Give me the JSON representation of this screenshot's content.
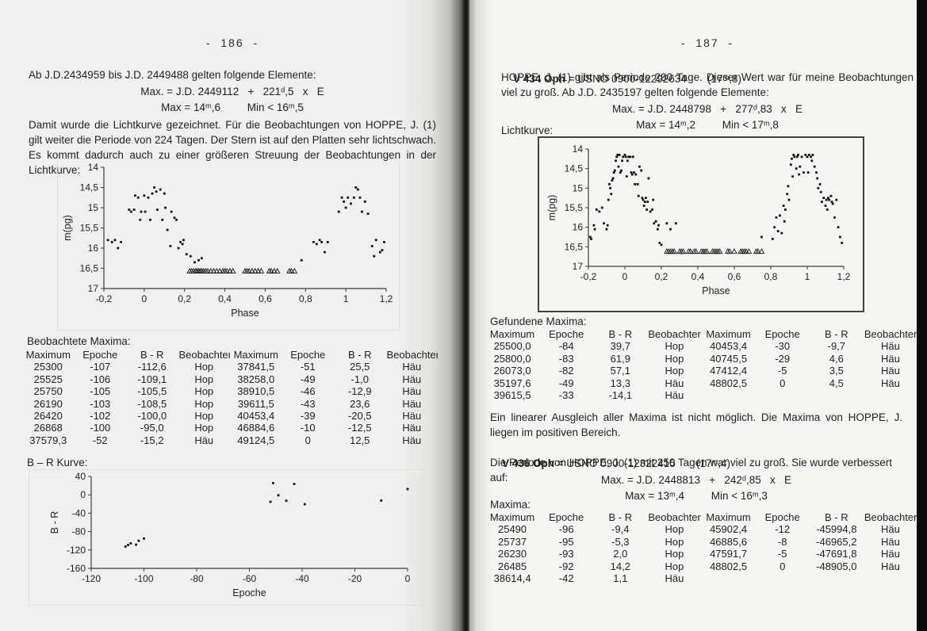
{
  "page_left": {
    "page_number": "-  186  -",
    "para1": "Ab J.D.2434959 bis J.D. 2449488 gelten folgende Elemente:",
    "formula": {
      "line1": "Max. = J.D. 2449112   +   221ᵈ,5   x   E",
      "line2": "Max = 14ᵐ,6         Min < 16ᵐ,5"
    },
    "para2": "Damit wurde die Lichtkurve gezeichnet. Für die Beobachtungen von HOPPE, J. (1) gilt weiter die Periode von 224 Tagen. Der Stern ist auf den Platten sehr lichtschwach. Es kommt dadurch auch zu einer größeren Streuung der Beobachtungen in der Lichtkurve:",
    "maxima_label": "Beobachtete Maxima:",
    "maxima_table": {
      "headers": [
        "Maximum",
        "Epoche",
        "B - R",
        "Beobachter",
        "Maximum",
        "Epoche",
        "B - R",
        "Beobachter"
      ],
      "rows": [
        [
          "25300",
          "-107",
          "-112,6",
          "Hop",
          "37841,5",
          "-51",
          "25,5",
          "Häu"
        ],
        [
          "25525",
          "-106",
          "-109,1",
          "Hop",
          "38258,0",
          "-49",
          "-1,0",
          "Häu"
        ],
        [
          "25750",
          "-105",
          "-105,5",
          "Hop",
          "38910,5",
          "-46",
          "-12,9",
          "Häu"
        ],
        [
          "26190",
          "-103",
          "-108,5",
          "Hop",
          "39611,5",
          "-43",
          "23,6",
          "Häu"
        ],
        [
          "26420",
          "-102",
          "-100,0",
          "Hop",
          "40453,4",
          "-39",
          "-20,5",
          "Häu"
        ],
        [
          "26868",
          "-100",
          "-95,0",
          "Hop",
          "46884,6",
          "-10",
          "-12,5",
          "Häu"
        ],
        [
          "37579,3",
          "-52",
          "-15,2",
          "Häu",
          "49124,5",
          "0",
          "12,5",
          "Häu"
        ]
      ]
    },
    "br_label": "B – R Kurve:"
  },
  "page_right": {
    "page_number": "-  187  -",
    "star1": {
      "name": "V 434 Oph",
      "rest": " = USNO 0900-12292634       (17ᵐ,8)"
    },
    "para1": "HOPPE, J. (1) gibt als Periode 290 Tage. Dieser Wert war für meine Beobachtungen viel zu groß. Ab J.D. 2435197 gelten folgende Elemente:",
    "formula1": {
      "line1": "Max. = J.D. 2448798   +   277ᵈ,83   x   E",
      "line2": "Max = 14ᵐ,2         Min < 17ᵐ,8"
    },
    "lichtkurve_label": "Lichtkurve:",
    "gefundene_label": "Gefundene Maxima:",
    "gefundene_table": {
      "headers": [
        "Maximum",
        "Epoche",
        "B - R",
        "Beobachter",
        "Maximum",
        "Epoche",
        "B - R",
        "Beobachter"
      ],
      "rows": [
        [
          "25500,0",
          "-84",
          "39,7",
          "Hop",
          "40453,4",
          "-30",
          "-9,7",
          "Häu"
        ],
        [
          "25800,0",
          "-83",
          "61,9",
          "Hop",
          "40745,5",
          "-29",
          "4,6",
          "Häu"
        ],
        [
          "26073,0",
          "-82",
          "57,1",
          "Hop",
          "47412,4",
          "-5",
          "3,5",
          "Häu"
        ],
        [
          "35197,6",
          "-49",
          "13,3",
          "Häu",
          "48802,5",
          "0",
          "4,5",
          "Häu"
        ],
        [
          "39615,5",
          "-33",
          "-14,1",
          "Häu",
          "",
          "",
          "",
          ""
        ]
      ]
    },
    "para2": "Ein linearer Ausgleich aller Maxima ist nicht möglich. Die Maxima von HOPPE, J. liegen im positiven Bereich.",
    "star2": {
      "name": "V 436 Oph",
      "rest": " = USNO 0900-12322415       (17ᵐ,4)"
    },
    "para3": "Die Periode von HOPPE, J. (1) mit 250 Tagen war viel zu groß. Sie wurde verbessert auf:",
    "formula2": {
      "line1": "Max. = J.D. 2448813   +   242ᵈ,85   x   E",
      "line2": "Max = 13ᵐ,4         Min < 16ᵐ,3"
    },
    "maxima_label": "Maxima:",
    "maxima_table": {
      "headers": [
        "Maximum",
        "Epoche",
        "B - R",
        "Beobachter",
        "Maximum",
        "Epoche",
        "B - R",
        "Beobachter"
      ],
      "rows": [
        [
          "25490",
          "-96",
          "-9,4",
          "Hop",
          "45902,4",
          "-12",
          "-45994,8",
          "Häu"
        ],
        [
          "25737",
          "-95",
          "-5,3",
          "Hop",
          "46885,6",
          "-8",
          "-46965,2",
          "Häu"
        ],
        [
          "26230",
          "-93",
          "2,0",
          "Hop",
          "47591,7",
          "-5",
          "-47691,8",
          "Häu"
        ],
        [
          "26485",
          "-92",
          "14,2",
          "Hop",
          "48802,5",
          "0",
          "-48905,0",
          "Häu"
        ],
        [
          "38614,4",
          "-42",
          "1,1",
          "Häu",
          "",
          "",
          "",
          ""
        ]
      ]
    }
  },
  "chart_data": [
    {
      "id": "lightcurve_186",
      "type": "scatter",
      "title": "",
      "xlabel": "Phase",
      "ylabel": "m(pg)",
      "xlim": [
        -0.2,
        1.2
      ],
      "ylim": [
        17,
        14
      ],
      "y_axis_inverted": true,
      "grid": false,
      "xticks": {
        "values": [
          -0.2,
          0,
          0.2,
          0.4,
          0.6,
          0.8,
          1,
          1.2
        ],
        "labels": [
          "-0,2",
          "0",
          "0,2",
          "0,4",
          "0,6",
          "0,8",
          "1",
          "1,2"
        ]
      },
      "yticks": {
        "values": [
          14,
          14.5,
          15,
          15.5,
          16,
          16.5,
          17
        ],
        "labels": [
          "14",
          "14,5",
          "15",
          "15,5",
          "16",
          "16,5",
          "17"
        ]
      },
      "points": [
        [
          -0.18,
          15.8
        ],
        [
          -0.16,
          15.85
        ],
        [
          -0.145,
          15.8
        ],
        [
          -0.13,
          16.0
        ],
        [
          -0.115,
          15.85
        ],
        [
          -0.075,
          15.05
        ],
        [
          -0.065,
          15.1
        ],
        [
          -0.05,
          15.05
        ],
        [
          -0.045,
          14.7
        ],
        [
          -0.03,
          14.75
        ],
        [
          -0.02,
          15.3
        ],
        [
          -0.015,
          15.1
        ],
        [
          0.0,
          14.7
        ],
        [
          0.005,
          15.1
        ],
        [
          0.02,
          14.75
        ],
        [
          0.03,
          15.3
        ],
        [
          0.04,
          14.65
        ],
        [
          0.05,
          14.5
        ],
        [
          0.06,
          14.6
        ],
        [
          0.065,
          15.05
        ],
        [
          0.08,
          14.55
        ],
        [
          0.09,
          15.3
        ],
        [
          0.1,
          14.65
        ],
        [
          0.105,
          15.0
        ],
        [
          0.115,
          15.55
        ],
        [
          0.13,
          15.95
        ],
        [
          0.135,
          15.1
        ],
        [
          0.15,
          15.25
        ],
        [
          0.16,
          15.3
        ],
        [
          0.17,
          16.0
        ],
        [
          0.18,
          15.85
        ],
        [
          0.19,
          15.9
        ],
        [
          0.195,
          15.8
        ],
        [
          0.21,
          16.15
        ],
        [
          0.23,
          16.2
        ],
        [
          0.25,
          16.35
        ],
        [
          0.27,
          16.3
        ],
        [
          0.285,
          16.25
        ],
        [
          0.78,
          16.3
        ],
        [
          0.84,
          15.85
        ],
        [
          0.855,
          15.9
        ],
        [
          0.87,
          15.8
        ],
        [
          0.88,
          15.85
        ],
        [
          0.895,
          16.1
        ],
        [
          0.91,
          15.85
        ],
        [
          0.965,
          15.1
        ],
        [
          0.98,
          14.75
        ],
        [
          0.99,
          14.85
        ],
        [
          1.0,
          15.0
        ],
        [
          1.01,
          14.75
        ],
        [
          1.025,
          14.9
        ],
        [
          1.04,
          14.75
        ],
        [
          1.05,
          14.5
        ],
        [
          1.06,
          14.55
        ],
        [
          1.07,
          14.75
        ],
        [
          1.08,
          15.1
        ],
        [
          1.095,
          14.85
        ],
        [
          1.11,
          15.15
        ],
        [
          1.13,
          15.95
        ],
        [
          1.14,
          16.2
        ],
        [
          1.15,
          15.8
        ],
        [
          1.17,
          16.1
        ],
        [
          1.18,
          16.05
        ],
        [
          1.19,
          15.85
        ]
      ],
      "upper_limits": {
        "y": 16.57,
        "phases": [
          0.225,
          0.235,
          0.245,
          0.255,
          0.262,
          0.27,
          0.278,
          0.286,
          0.295,
          0.305,
          0.315,
          0.33,
          0.345,
          0.36,
          0.375,
          0.39,
          0.4,
          0.41,
          0.425,
          0.44,
          0.5,
          0.51,
          0.52,
          0.535,
          0.55,
          0.565,
          0.58,
          0.62,
          0.63,
          0.645,
          0.66,
          0.72,
          0.73,
          0.745
        ]
      }
    },
    {
      "id": "br_kurve_186",
      "type": "scatter",
      "title": "",
      "xlabel": "Epoche",
      "ylabel": "B - R",
      "xlim": [
        -120,
        0
      ],
      "ylim": [
        -160,
        40
      ],
      "y_axis_inverted": false,
      "grid": false,
      "xticks": {
        "values": [
          -120,
          -100,
          -80,
          -60,
          -40,
          -20,
          0
        ],
        "labels": [
          "-120",
          "-100",
          "-80",
          "-60",
          "-40",
          "-20",
          "0"
        ]
      },
      "yticks": {
        "values": [
          40,
          0,
          -40,
          -80,
          -120,
          -160
        ],
        "labels": [
          "40",
          "0",
          "-40",
          "-80",
          "-120",
          "-160"
        ]
      },
      "points": [
        [
          -107,
          -112.6
        ],
        [
          -106,
          -109.1
        ],
        [
          -105,
          -105.5
        ],
        [
          -103,
          -108.5
        ],
        [
          -102,
          -100.0
        ],
        [
          -100,
          -95.0
        ],
        [
          -52,
          -15.2
        ],
        [
          -51,
          25.5
        ],
        [
          -49,
          -1.0
        ],
        [
          -46,
          -12.9
        ],
        [
          -43,
          23.6
        ],
        [
          -39,
          -20.5
        ],
        [
          -10,
          -12.5
        ],
        [
          0,
          12.5
        ]
      ]
    },
    {
      "id": "lightcurve_187",
      "type": "scatter",
      "title": "",
      "xlabel": "Phase",
      "ylabel": "m(pg)",
      "xlim": [
        -0.2,
        1.2
      ],
      "ylim": [
        17,
        14
      ],
      "y_axis_inverted": true,
      "grid": false,
      "boxed": true,
      "xticks": {
        "values": [
          -0.2,
          0,
          0.2,
          0.4,
          0.6,
          0.8,
          1,
          1.2
        ],
        "labels": [
          "-0,2",
          "0",
          "0,2",
          "0,4",
          "0,6",
          "0,8",
          "1",
          "1,2"
        ]
      },
      "yticks": {
        "values": [
          14,
          14.5,
          15,
          15.5,
          16,
          16.5,
          17
        ],
        "labels": [
          "14",
          "14,5",
          "15",
          "15,5",
          "16",
          "16,5",
          "17"
        ]
      },
      "points": [
        [
          -0.19,
          16.25
        ],
        [
          -0.185,
          16.3
        ],
        [
          -0.17,
          15.95
        ],
        [
          -0.165,
          16.05
        ],
        [
          -0.155,
          15.55
        ],
        [
          -0.14,
          15.6
        ],
        [
          -0.125,
          15.5
        ],
        [
          -0.115,
          15.9
        ],
        [
          -0.1,
          16.05
        ],
        [
          -0.095,
          15.95
        ],
        [
          -0.09,
          15.3
        ],
        [
          -0.085,
          14.9
        ],
        [
          -0.08,
          15.0
        ],
        [
          -0.075,
          15.15
        ],
        [
          -0.07,
          14.8
        ],
        [
          -0.065,
          14.75
        ],
        [
          -0.06,
          14.6
        ],
        [
          -0.055,
          14.55
        ],
        [
          -0.05,
          14.3
        ],
        [
          -0.045,
          14.2
        ],
        [
          -0.04,
          14.15
        ],
        [
          -0.035,
          14.45
        ],
        [
          -0.03,
          14.15
        ],
        [
          -0.025,
          14.6
        ],
        [
          -0.02,
          14.55
        ],
        [
          -0.015,
          14.3
        ],
        [
          -0.01,
          14.2
        ],
        [
          0.0,
          14.15
        ],
        [
          0.005,
          14.2
        ],
        [
          0.01,
          14.7
        ],
        [
          0.015,
          14.3
        ],
        [
          0.02,
          14.2
        ],
        [
          0.03,
          14.2
        ],
        [
          0.035,
          14.6
        ],
        [
          0.04,
          14.65
        ],
        [
          0.045,
          14.2
        ],
        [
          0.05,
          14.6
        ],
        [
          0.055,
          14.9
        ],
        [
          0.06,
          14.65
        ],
        [
          0.07,
          14.9
        ],
        [
          0.075,
          15.2
        ],
        [
          0.08,
          14.45
        ],
        [
          0.09,
          14.55
        ],
        [
          0.095,
          15.25
        ],
        [
          0.1,
          15.3
        ],
        [
          0.105,
          15.45
        ],
        [
          0.11,
          15.35
        ],
        [
          0.115,
          15.25
        ],
        [
          0.12,
          15.55
        ],
        [
          0.125,
          15.35
        ],
        [
          0.13,
          14.75
        ],
        [
          0.14,
          15.6
        ],
        [
          0.15,
          15.55
        ],
        [
          0.155,
          15.3
        ],
        [
          0.16,
          15.9
        ],
        [
          0.17,
          15.85
        ],
        [
          0.18,
          16.05
        ],
        [
          0.185,
          15.95
        ],
        [
          0.19,
          16.4
        ],
        [
          0.2,
          16.45
        ],
        [
          0.23,
          15.9
        ],
        [
          0.25,
          16.05
        ],
        [
          0.28,
          15.9
        ],
        [
          0.75,
          16.25
        ],
        [
          0.81,
          16.3
        ],
        [
          0.82,
          16.0
        ],
        [
          0.83,
          15.75
        ],
        [
          0.84,
          16.1
        ],
        [
          0.85,
          15.7
        ],
        [
          0.86,
          16.15
        ],
        [
          0.87,
          15.45
        ],
        [
          0.875,
          15.85
        ],
        [
          0.88,
          15.55
        ],
        [
          0.89,
          15.15
        ],
        [
          0.895,
          14.95
        ],
        [
          0.9,
          15.3
        ],
        [
          0.91,
          14.4
        ],
        [
          0.915,
          14.25
        ],
        [
          0.92,
          14.7
        ],
        [
          0.925,
          14.15
        ],
        [
          0.93,
          14.2
        ],
        [
          0.94,
          14.5
        ],
        [
          0.945,
          14.2
        ],
        [
          0.95,
          14.15
        ],
        [
          0.955,
          14.65
        ],
        [
          0.96,
          14.45
        ],
        [
          0.97,
          14.2
        ],
        [
          0.98,
          14.6
        ],
        [
          0.99,
          14.15
        ],
        [
          1.0,
          14.2
        ],
        [
          1.005,
          14.6
        ],
        [
          1.01,
          14.15
        ],
        [
          1.02,
          14.2
        ],
        [
          1.025,
          14.3
        ],
        [
          1.03,
          14.15
        ],
        [
          1.04,
          14.45
        ],
        [
          1.05,
          14.6
        ],
        [
          1.055,
          14.75
        ],
        [
          1.06,
          15.0
        ],
        [
          1.07,
          14.9
        ],
        [
          1.075,
          15.1
        ],
        [
          1.08,
          15.35
        ],
        [
          1.09,
          15.25
        ],
        [
          1.1,
          15.45
        ],
        [
          1.105,
          15.3
        ],
        [
          1.11,
          15.55
        ],
        [
          1.115,
          15.25
        ],
        [
          1.12,
          15.3
        ],
        [
          1.13,
          15.2
        ],
        [
          1.135,
          15.35
        ],
        [
          1.14,
          15.4
        ],
        [
          1.15,
          15.75
        ],
        [
          1.16,
          15.3
        ],
        [
          1.17,
          16.0
        ],
        [
          1.18,
          16.25
        ],
        [
          1.19,
          16.4
        ]
      ],
      "upper_limits": {
        "y": 16.62,
        "phases": [
          0.23,
          0.24,
          0.25,
          0.26,
          0.27,
          0.3,
          0.31,
          0.32,
          0.35,
          0.36,
          0.38,
          0.39,
          0.42,
          0.43,
          0.44,
          0.45,
          0.48,
          0.49,
          0.5,
          0.51,
          0.52,
          0.565,
          0.575,
          0.6,
          0.635,
          0.645,
          0.655,
          0.665,
          0.68,
          0.72,
          0.73,
          0.75
        ]
      }
    }
  ]
}
